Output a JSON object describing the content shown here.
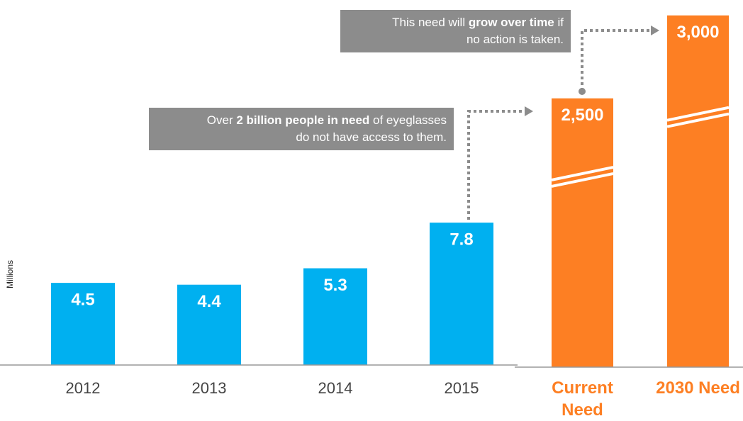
{
  "chart_data": [
    {
      "type": "bar",
      "ylabel": "Millions",
      "categories": [
        "2012",
        "2013",
        "2014",
        "2015"
      ],
      "values": [
        4.5,
        4.4,
        5.3,
        7.8
      ],
      "color": "#00b0f0",
      "ylim": [
        0,
        20
      ]
    },
    {
      "type": "bar",
      "categories": [
        "Current Need",
        "2030 Need"
      ],
      "values": [
        2500,
        3000
      ],
      "value_labels": [
        "2,500",
        "3,000"
      ],
      "color": "#fd7f23",
      "ylim": [
        880,
        3080
      ],
      "axis_break": true
    }
  ],
  "annotations": [
    {
      "lines": [
        [
          {
            "text": "Over "
          },
          {
            "text": "2 billion people in need",
            "bold": true
          },
          {
            "text": " of eyeglasses"
          }
        ],
        [
          {
            "text": "do not have access to them."
          }
        ]
      ]
    },
    {
      "lines": [
        [
          {
            "text": "This need will "
          },
          {
            "text": "grow over time",
            "bold": true
          },
          {
            "text": " if"
          }
        ],
        [
          {
            "text": "no action is taken."
          }
        ]
      ]
    }
  ]
}
